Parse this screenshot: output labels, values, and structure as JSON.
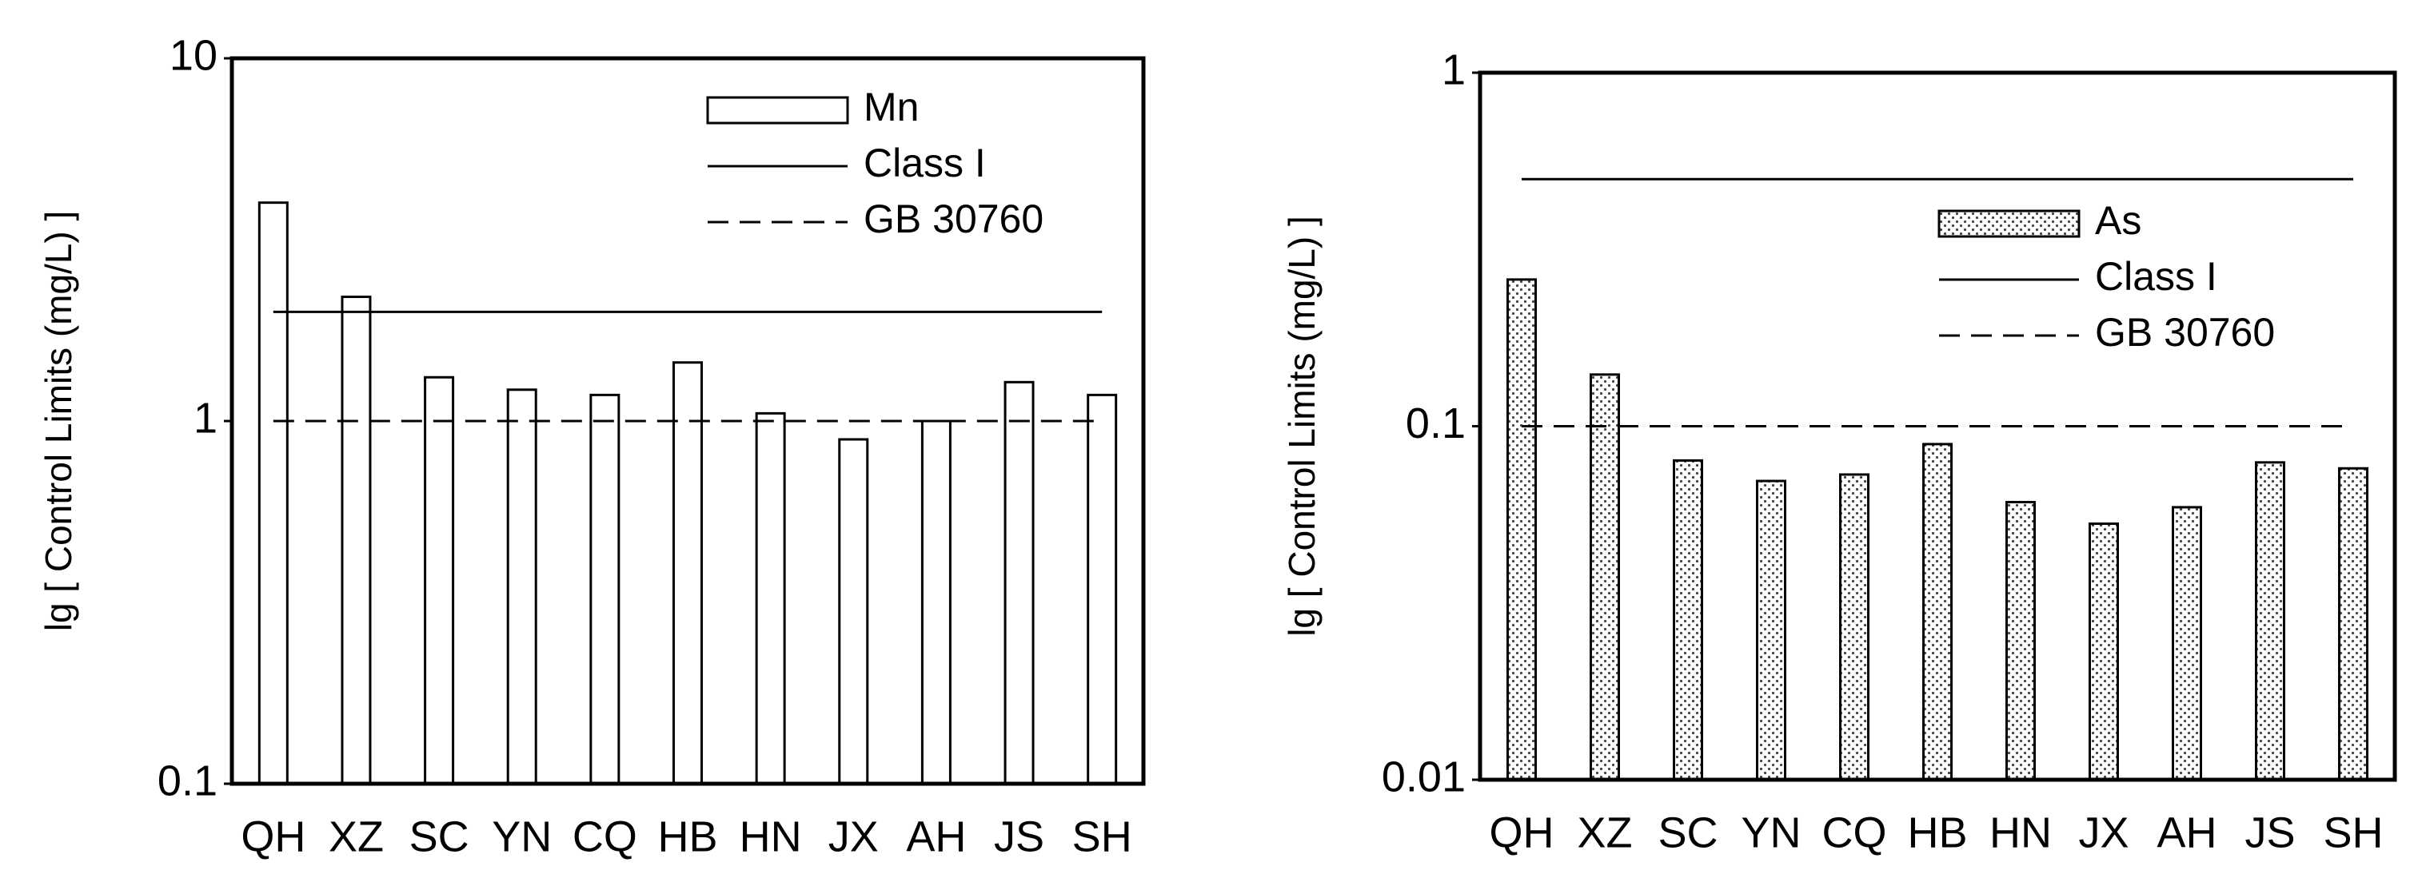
{
  "chart_data": [
    {
      "type": "bar",
      "y_label": "lg [ Control Limits (mg/L) ]",
      "categories": [
        "QH",
        "XZ",
        "SC",
        "YN",
        "CQ",
        "HB",
        "HN",
        "JX",
        "AH",
        "JS",
        "SH"
      ],
      "series": [
        {
          "name": "Mn",
          "color": "#ffffff",
          "values": [
            4.0,
            2.2,
            1.32,
            1.22,
            1.18,
            1.45,
            1.05,
            0.89,
            1.0,
            1.28,
            1.18
          ]
        }
      ],
      "reference_lines": [
        {
          "name": "Class I",
          "value": 2,
          "style": "solid"
        },
        {
          "name": "GB 30760",
          "value": 1,
          "style": "dashed"
        }
      ],
      "ylim": [
        0.1,
        10
      ],
      "yticks": [
        0.1,
        1,
        10
      ],
      "log_scale": true,
      "grid": false
    },
    {
      "type": "bar",
      "y_label": "lg [ Control Limits (mg/L) ]",
      "categories": [
        "QH",
        "XZ",
        "SC",
        "YN",
        "CQ",
        "HB",
        "HN",
        "JX",
        "AH",
        "JS",
        "SH"
      ],
      "series": [
        {
          "name": "As",
          "color": "#ffffff",
          "hatch": "dots",
          "values": [
            0.26,
            0.14,
            0.08,
            0.07,
            0.073,
            0.089,
            0.061,
            0.053,
            0.059,
            0.079,
            0.076
          ]
        }
      ],
      "reference_lines": [
        {
          "name": "Class I",
          "value": 0.5,
          "style": "solid"
        },
        {
          "name": "GB 30760",
          "value": 0.1,
          "style": "dashed"
        }
      ],
      "ylim": [
        0.01,
        1
      ],
      "yticks": [
        0.01,
        0.1,
        1
      ],
      "log_scale": true,
      "grid": false
    }
  ]
}
